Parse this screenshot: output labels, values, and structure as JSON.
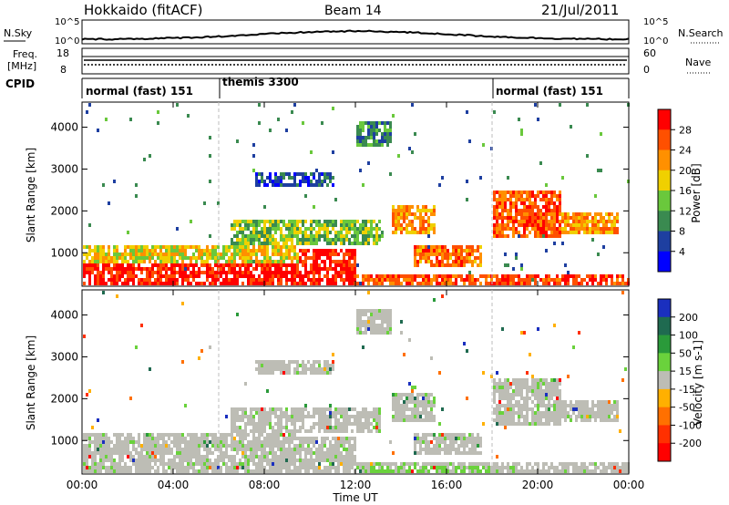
{
  "header": {
    "site": "Hokkaido (fitACF)",
    "beam": "Beam 14",
    "date": "21/Jul/2011"
  },
  "noise_panel": {
    "left_label": "N.Sky",
    "right_label": "N.Search",
    "left_ticks": [
      "10^5",
      "10^0"
    ],
    "right_ticks": [
      "10^5",
      "10^0"
    ]
  },
  "freq_panel": {
    "left_label_1": "Freq.",
    "left_label_2": "[MHz]",
    "left_ticks": [
      "18",
      "8"
    ],
    "right_label": "Nave",
    "right_ticks": [
      "60",
      "0"
    ]
  },
  "cpid_panel": {
    "label": "CPID",
    "segments": [
      {
        "name": "normal (fast) 151",
        "start": 0,
        "end": 6
      },
      {
        "name": "themis 3300",
        "start": 6,
        "end": 18
      },
      {
        "name": "normal (fast) 151",
        "start": 18,
        "end": 24
      }
    ]
  },
  "power_colorbar": {
    "label": "Power [dB]",
    "ticks": [
      "4",
      "8",
      "12",
      "16",
      "20",
      "24",
      "28"
    ],
    "colors": [
      "#0000ff",
      "#1e3fa0",
      "#3a8a50",
      "#6ac83c",
      "#f0d000",
      "#ff9000",
      "#ff5000",
      "#ff0000"
    ]
  },
  "velocity_colorbar": {
    "label": "Velocity [m s-1]",
    "ticks": [
      "200",
      "100",
      "50",
      "15",
      "-15",
      "-50",
      "-100",
      "-200"
    ],
    "colors": [
      "#1a2fbf",
      "#1f6a50",
      "#2a9a3a",
      "#6ad23c",
      "#bdbdb5",
      "#ffb000",
      "#ff7000",
      "#ff3000",
      "#ff0000"
    ]
  },
  "chart_data": [
    {
      "type": "heatmap",
      "title": "Power",
      "ylabel": "Slant Range [km]",
      "xlabel": "Time UT",
      "x_ticks": [
        "00:00",
        "04:00",
        "08:00",
        "12:00",
        "16:00",
        "20:00",
        "00:00"
      ],
      "y_ticks": [
        "1000",
        "2000",
        "3000",
        "4000"
      ],
      "ylim": [
        200,
        4600
      ],
      "xlim": [
        0,
        24
      ],
      "regions": [
        {
          "t0": 0.0,
          "t1": 9.5,
          "r0": 300,
          "r1": 800,
          "power": 30
        },
        {
          "t0": 0.0,
          "t1": 9.5,
          "r0": 800,
          "r1": 1200,
          "power": 18
        },
        {
          "t0": 9.5,
          "t1": 12.0,
          "r0": 250,
          "r1": 1100,
          "power": 30
        },
        {
          "t0": 12.0,
          "t1": 18.0,
          "r0": 250,
          "r1": 500,
          "power": 26
        },
        {
          "t0": 14.5,
          "t1": 17.5,
          "r0": 700,
          "r1": 1200,
          "power": 24
        },
        {
          "t0": 6.5,
          "t1": 13.0,
          "r0": 1200,
          "r1": 1800,
          "power": 14
        },
        {
          "t0": 13.5,
          "t1": 15.5,
          "r0": 1500,
          "r1": 2200,
          "power": 22
        },
        {
          "t0": 18.0,
          "t1": 21.0,
          "r0": 1400,
          "r1": 2500,
          "power": 26
        },
        {
          "t0": 21.0,
          "t1": 23.5,
          "r0": 1500,
          "r1": 2000,
          "power": 22
        },
        {
          "t0": 18.0,
          "t1": 24.0,
          "r0": 250,
          "r1": 500,
          "power": 28
        },
        {
          "t0": 7.5,
          "t1": 11.0,
          "r0": 2600,
          "r1": 3000,
          "power": 6
        },
        {
          "t0": 12.0,
          "t1": 13.5,
          "r0": 3600,
          "r1": 4200,
          "power": 10
        }
      ]
    },
    {
      "type": "heatmap",
      "title": "Velocity",
      "ylabel": "Slant Range [km]",
      "xlabel": "Time UT",
      "x_ticks": [
        "00:00",
        "04:00",
        "08:00",
        "12:00",
        "16:00",
        "20:00",
        "00:00"
      ],
      "y_ticks": [
        "1000",
        "2000",
        "3000",
        "4000"
      ],
      "ylim": [
        200,
        4600
      ],
      "xlim": [
        0,
        24
      ]
    }
  ],
  "xaxis_label": "Time UT",
  "panel_ylabel": "Slant Range [km]"
}
